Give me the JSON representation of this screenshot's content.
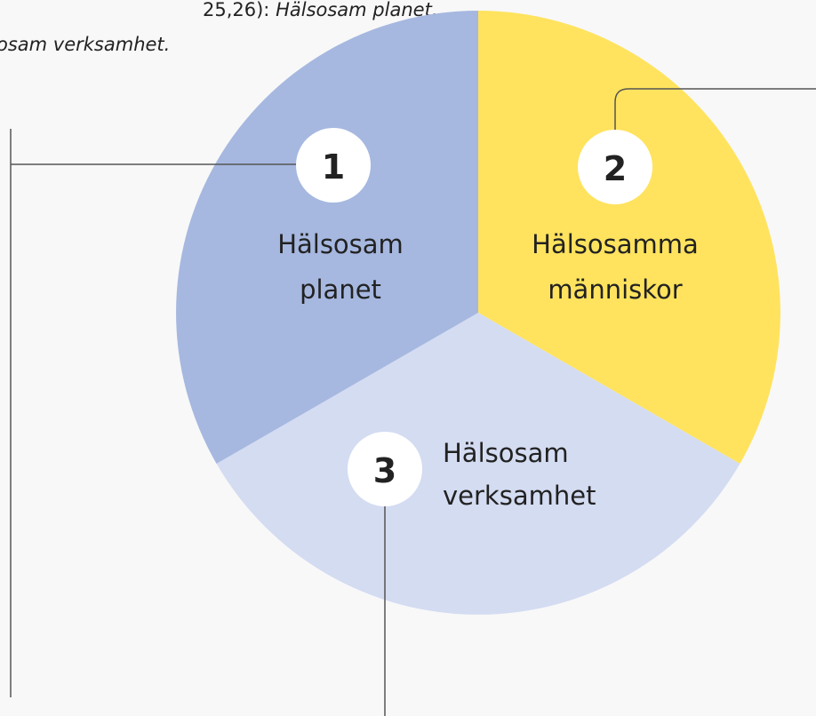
{
  "caption": {
    "line1_plain": "25,26):",
    "line1_italic": "Hälsosam planet,",
    "line2_italic": "osam verksamhet."
  },
  "segments": [
    {
      "number": "1",
      "label": [
        "Hälsosam",
        "planet"
      ]
    },
    {
      "number": "2",
      "label": [
        "Hälsosamma",
        "människor"
      ]
    },
    {
      "number": "3",
      "label": [
        "Hälsosam",
        "verksamhet"
      ]
    }
  ]
}
